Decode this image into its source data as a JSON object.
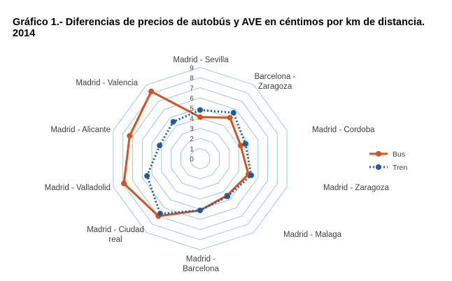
{
  "chart_data": {
    "type": "radar",
    "title": "Gráfico 1.- Diferencias de precios de autobús y AVE en céntimos por km de distancia. 2014",
    "categories": [
      [
        "Madrid - Sevilla"
      ],
      [
        "Barcelona -",
        "Zaragoza"
      ],
      [
        "Madrid - Cordoba"
      ],
      [
        "Madrid - Zaragoza"
      ],
      [
        "Madrid - Malaga"
      ],
      [
        "Madrid -",
        "Barcelona"
      ],
      [
        "Madrid - Ciudad",
        "real"
      ],
      [
        "Madrid - Valladolid"
      ],
      [
        "Madrid - Alicante"
      ],
      [
        "Madrid - Valencia"
      ]
    ],
    "rlim": [
      0,
      9
    ],
    "ticks": [
      "0",
      "1",
      "2",
      "3",
      "4",
      "5",
      "6",
      "7",
      "8",
      "9"
    ],
    "grid": true,
    "legend_position": "right",
    "series": [
      {
        "name": "Bus",
        "color": "#d4531f",
        "style": "solid",
        "values": [
          4.1,
          5.0,
          4.2,
          5.0,
          4.5,
          5.1,
          7.0,
          7.9,
          7.3,
          8.2
        ]
      },
      {
        "name": "Tren",
        "color": "#1f5aa6",
        "style": "dotted",
        "values": [
          4.8,
          5.6,
          4.7,
          5.3,
          4.6,
          5.1,
          6.7,
          5.5,
          4.2,
          4.5
        ]
      }
    ],
    "grid_color": "#86bde6"
  }
}
